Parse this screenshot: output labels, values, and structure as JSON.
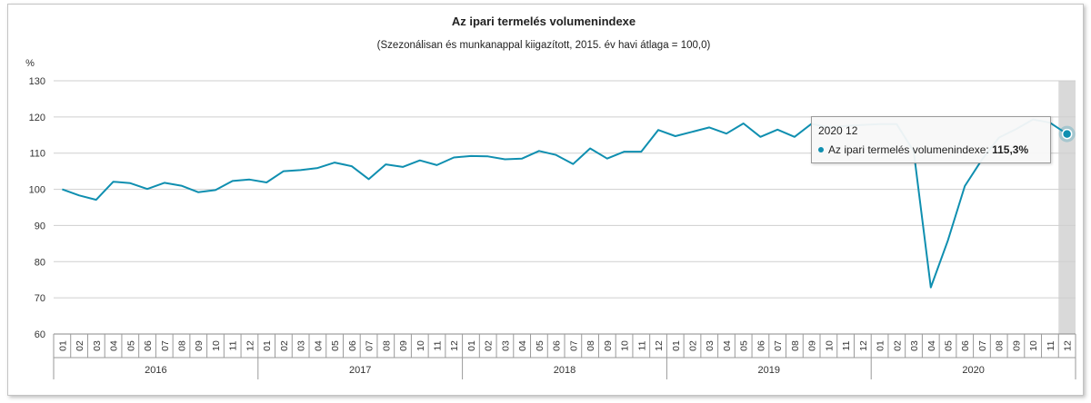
{
  "chart_data": {
    "type": "line",
    "title": "Az ipari termelés volumenindexe",
    "subtitle": "(Szezonálisan és munkanappal kiigazított, 2015. év havi átlaga = 100,0)",
    "ylabel": "%",
    "ylim": [
      60,
      130
    ],
    "yticks": [
      60,
      70,
      80,
      90,
      100,
      110,
      120,
      130
    ],
    "grid": true,
    "line_color": "#0f8fb0",
    "years": [
      "2016",
      "2017",
      "2018",
      "2019",
      "2020"
    ],
    "months": [
      "01",
      "02",
      "03",
      "04",
      "05",
      "06",
      "07",
      "08",
      "09",
      "10",
      "11",
      "12"
    ],
    "series": [
      {
        "name": "Az ipari termelés volumenindexe",
        "values": [
          100.0,
          98.3,
          97.1,
          102.1,
          101.7,
          100.1,
          101.8,
          101.0,
          99.2,
          99.8,
          102.3,
          102.7,
          101.9,
          105.0,
          105.3,
          105.9,
          107.4,
          106.4,
          102.8,
          106.9,
          106.2,
          108.0,
          106.7,
          108.8,
          109.2,
          109.1,
          108.3,
          108.5,
          110.6,
          109.5,
          107.0,
          111.3,
          108.5,
          110.4,
          110.4,
          116.4,
          114.7,
          115.9,
          117.1,
          115.4,
          118.2,
          114.5,
          116.5,
          114.5,
          118.1,
          117.1,
          117.5,
          117.8,
          118.0,
          118.0,
          110.5,
          72.9,
          85.8,
          100.9,
          108.2,
          114.3,
          116.6,
          119.3,
          118.4,
          115.3
        ]
      }
    ],
    "highlight_index": 59
  },
  "tooltip": {
    "period": "2020 12",
    "series_label": "Az ipari termelés volumenindexe:",
    "value": "115,3%"
  }
}
